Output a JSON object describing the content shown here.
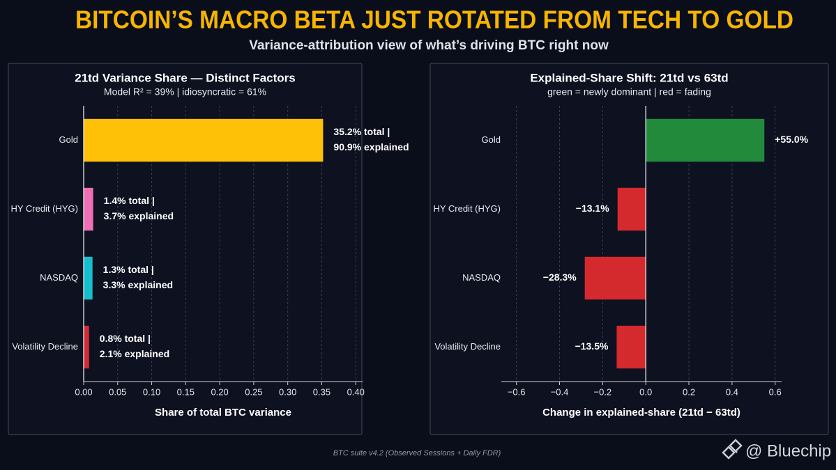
{
  "title": "BITCOIN’S MACRO BETA JUST ROTATED FROM TECH TO GOLD",
  "subtitle": "Variance-attribution view of what’s driving BTC right now",
  "footer": "BTC suite v4.2 (Observed Sessions + Daily FDR)",
  "brand": "@ Bluechip",
  "chart_data": [
    {
      "type": "hbar",
      "title": "21td Variance Share — Distinct Factors",
      "subtitle": "Model R² = 39%  |  idiosyncratic = 61%",
      "categories": [
        "Gold",
        "HY Credit (HYG)",
        "NASDAQ",
        "Volatility Decline"
      ],
      "values": [
        0.352,
        0.014,
        0.013,
        0.008
      ],
      "value_labels": [
        [
          "35.2% total |",
          "90.9% explained"
        ],
        [
          "1.4% total |",
          "3.7% explained"
        ],
        [
          "1.3% total |",
          "3.3% explained"
        ],
        [
          "0.8% total |",
          "2.1% explained"
        ]
      ],
      "colors": [
        "#ffc107",
        "#ee6fb3",
        "#17bfce",
        "#d42a36"
      ],
      "xlim": [
        0,
        0.41
      ],
      "xticks": [
        {
          "value": 0,
          "label": "0.00"
        },
        0.05,
        {
          "value": 0.1,
          "label": "0.10"
        },
        0.15,
        {
          "value": 0.2,
          "label": "0.20"
        },
        0.25,
        {
          "value": 0.3,
          "label": "0.30"
        },
        0.35,
        {
          "value": 0.4,
          "label": "0.40"
        }
      ],
      "xlabel": "Share of total BTC variance",
      "grid": true
    },
    {
      "type": "hbar",
      "title": "Explained-Share Shift: 21td vs 63td",
      "subtitle": "green = newly dominant | red = fading",
      "categories": [
        "Gold",
        "HY Credit (HYG)",
        "NASDAQ",
        "Volatility Decline"
      ],
      "values": [
        0.55,
        -0.131,
        -0.283,
        -0.135
      ],
      "value_labels": [
        "+55.0%",
        "−13.1%",
        "−28.3%",
        "−13.5%"
      ],
      "colors": [
        "#228b3b",
        "#d42a2e",
        "#d42a2e",
        "#d42a2e"
      ],
      "xlim": [
        -0.67,
        0.63
      ],
      "xticks": [
        {
          "value": -0.6,
          "label": "−0.6"
        },
        {
          "value": -0.4,
          "label": "−0.4"
        },
        {
          "value": -0.2,
          "label": "−0.2"
        },
        {
          "value": 0,
          "label": "0.0"
        },
        0.2,
        0.4,
        0.6
      ],
      "xlabel": "Change in explained-share (21td − 63td)",
      "grid": true
    }
  ]
}
